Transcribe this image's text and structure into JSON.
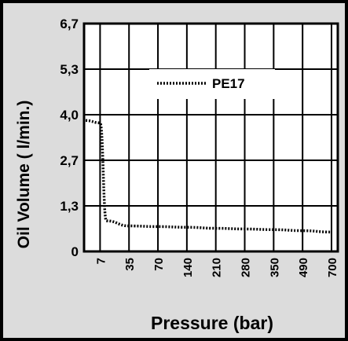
{
  "chart_data": {
    "type": "line",
    "title": "",
    "xlabel": "Pressure (bar)",
    "ylabel": "Oil Volume ( l/min.)",
    "x_categories": [
      "7",
      "35",
      "70",
      "140",
      "210",
      "280",
      "350",
      "490",
      "700"
    ],
    "y_ticks": [
      "0",
      "1,3",
      "2,7",
      "4,0",
      "5,3",
      "6,7"
    ],
    "ylim": [
      0,
      6.7
    ],
    "grid": true,
    "legend": "top-right",
    "series": [
      {
        "name": "PE17",
        "style": "dotted",
        "color": "#000000",
        "points": [
          {
            "x": "start",
            "y": 3.85
          },
          {
            "x": "7",
            "y": 3.78
          },
          {
            "x": "7",
            "y": 0.9
          },
          {
            "x": "35",
            "y": 0.75
          },
          {
            "x": "70",
            "y": 0.73
          },
          {
            "x": "140",
            "y": 0.71
          },
          {
            "x": "210",
            "y": 0.68
          },
          {
            "x": "280",
            "y": 0.66
          },
          {
            "x": "350",
            "y": 0.64
          },
          {
            "x": "490",
            "y": 0.61
          },
          {
            "x": "700",
            "y": 0.57
          }
        ]
      }
    ]
  }
}
